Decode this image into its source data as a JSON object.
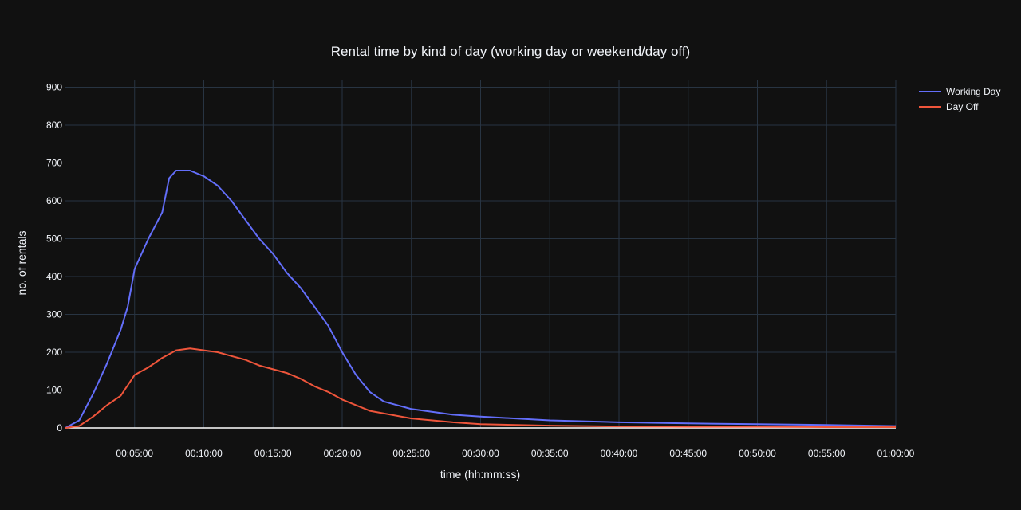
{
  "chart_data": {
    "type": "line",
    "title": "Rental time by kind of day (working day or weekend/day off)",
    "xlabel": "time (hh:mm:ss)",
    "ylabel": "no. of rentals",
    "x_unit": "time (hh:mm:ss)",
    "xlim": [
      "00:00:00",
      "01:00:00"
    ],
    "ylim": [
      0,
      920
    ],
    "x_tick_labels": [
      "00:05:00",
      "00:10:00",
      "00:15:00",
      "00:20:00",
      "00:25:00",
      "00:30:00",
      "00:35:00",
      "00:40:00",
      "00:45:00",
      "00:50:00",
      "00:55:00",
      "01:00:00"
    ],
    "y_tick_labels": [
      "0",
      "100",
      "200",
      "300",
      "400",
      "500",
      "600",
      "700",
      "800",
      "900"
    ],
    "grid": true,
    "legend_position": "top-right",
    "series": [
      {
        "name": "Working Day",
        "color": "#636efa",
        "x": [
          "00:00:00",
          "00:01:00",
          "00:02:00",
          "00:03:00",
          "00:04:00",
          "00:04:30",
          "00:05:00",
          "00:06:00",
          "00:07:00",
          "00:07:30",
          "00:08:00",
          "00:09:00",
          "00:10:00",
          "00:11:00",
          "00:12:00",
          "00:13:00",
          "00:14:00",
          "00:15:00",
          "00:16:00",
          "00:17:00",
          "00:18:00",
          "00:19:00",
          "00:20:00",
          "00:21:00",
          "00:22:00",
          "00:23:00",
          "00:25:00",
          "00:28:00",
          "00:30:00",
          "00:35:00",
          "00:40:00",
          "00:45:00",
          "00:50:00",
          "00:55:00",
          "01:00:00"
        ],
        "y": [
          0,
          20,
          90,
          170,
          260,
          320,
          420,
          500,
          570,
          660,
          680,
          680,
          665,
          640,
          600,
          550,
          500,
          460,
          410,
          370,
          320,
          270,
          200,
          140,
          95,
          70,
          50,
          35,
          30,
          20,
          15,
          12,
          10,
          8,
          5
        ]
      },
      {
        "name": "Day Off",
        "color": "#ef553b",
        "x": [
          "00:00:00",
          "00:01:00",
          "00:02:00",
          "00:03:00",
          "00:04:00",
          "00:05:00",
          "00:06:00",
          "00:07:00",
          "00:08:00",
          "00:09:00",
          "00:10:00",
          "00:11:00",
          "00:12:00",
          "00:13:00",
          "00:14:00",
          "00:15:00",
          "00:16:00",
          "00:17:00",
          "00:18:00",
          "00:19:00",
          "00:20:00",
          "00:22:00",
          "00:25:00",
          "00:28:00",
          "00:30:00",
          "00:35:00",
          "00:40:00",
          "00:45:00",
          "00:50:00",
          "00:55:00",
          "01:00:00"
        ],
        "y": [
          0,
          5,
          30,
          60,
          85,
          140,
          160,
          185,
          205,
          210,
          205,
          200,
          190,
          180,
          165,
          155,
          145,
          130,
          110,
          95,
          75,
          45,
          25,
          15,
          10,
          6,
          4,
          3,
          3,
          2,
          2
        ]
      }
    ]
  }
}
